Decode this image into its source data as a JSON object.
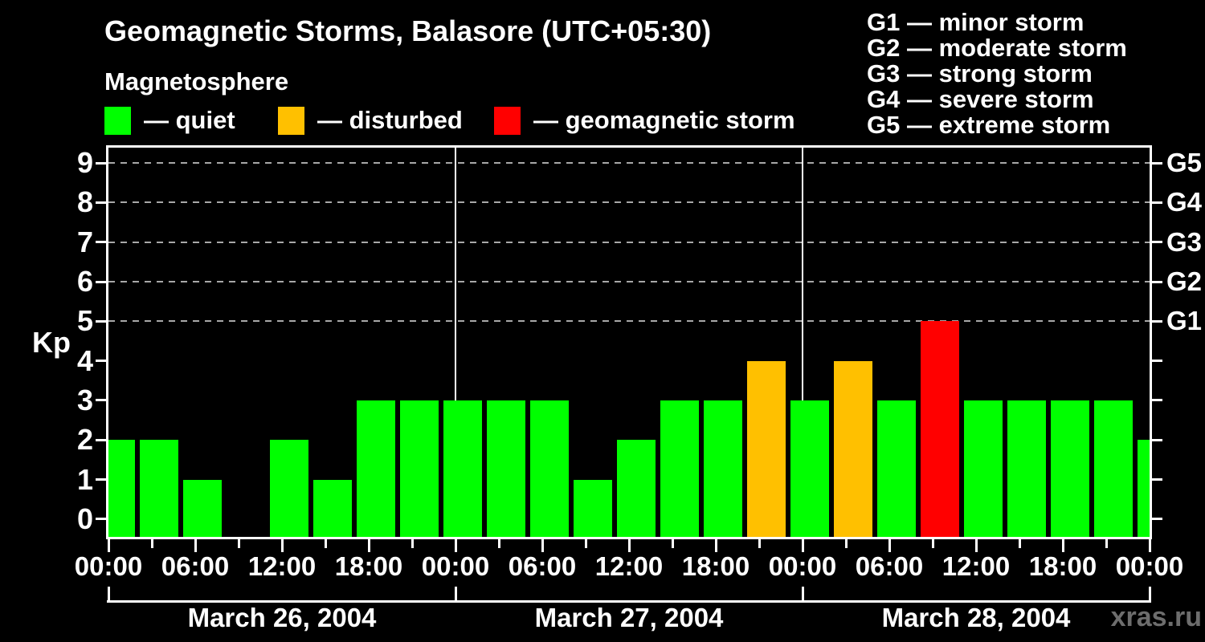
{
  "header": {
    "title": "Geomagnetic Storms, Balasore (UTC+05:30)",
    "subtitle": "Magnetosphere"
  },
  "legend": {
    "items": [
      {
        "name": "quiet",
        "label": "— quiet",
        "color": "#00ff00"
      },
      {
        "name": "disturbed",
        "label": "— disturbed",
        "color": "#ffc000"
      },
      {
        "name": "storm",
        "label": "— geomagnetic storm",
        "color": "#ff0000"
      }
    ]
  },
  "g_legend": {
    "items": [
      {
        "label": "G1 — minor storm"
      },
      {
        "label": "G2 — moderate storm"
      },
      {
        "label": "G3 — strong storm"
      },
      {
        "label": "G4 — severe storm"
      },
      {
        "label": "G5 — extreme storm"
      }
    ]
  },
  "chart_data": {
    "type": "bar",
    "title": "Geomagnetic Storms, Balasore (UTC+05:30)",
    "subtitle": "Magnetosphere",
    "ylabel": "Kp",
    "ylim": [
      0,
      9
    ],
    "y_ticks": [
      0,
      1,
      2,
      3,
      4,
      5,
      6,
      7,
      8,
      9
    ],
    "grid_kp_levels": [
      5,
      6,
      7,
      8,
      9
    ],
    "right_axis_labels": [
      {
        "label": "G1",
        "kp": 5
      },
      {
        "label": "G2",
        "kp": 6
      },
      {
        "label": "G3",
        "kp": 7
      },
      {
        "label": "G4",
        "kp": 8
      },
      {
        "label": "G5",
        "kp": 9
      }
    ],
    "interval_hours": 3,
    "bar_time_offset_hours": 0.5,
    "x_time_labels": [
      "00:00",
      "06:00",
      "12:00",
      "18:00",
      "00:00",
      "06:00",
      "12:00",
      "18:00",
      "00:00",
      "06:00",
      "12:00",
      "18:00",
      "00:00"
    ],
    "days": [
      {
        "date": "March 26, 2004",
        "kp": [
          2,
          2,
          1,
          0,
          2,
          1,
          3,
          3
        ]
      },
      {
        "date": "March 27, 2004",
        "kp": [
          3,
          3,
          3,
          1,
          2,
          3,
          3,
          4
        ]
      },
      {
        "date": "March 28, 2004",
        "kp": [
          3,
          4,
          3,
          5,
          3,
          3,
          3,
          3
        ]
      }
    ],
    "partial_next_interval_kp": 2,
    "colors": {
      "quiet": "#00ff00",
      "disturbed": "#ffc000",
      "storm": "#ff0000"
    },
    "color_rule": {
      "quiet_max": 3,
      "disturbed": 4,
      "storm_min": 5
    },
    "legend_position": "top",
    "grid": "dashed horizontal at Kp 5-9 only"
  },
  "watermark": "xras.ru"
}
